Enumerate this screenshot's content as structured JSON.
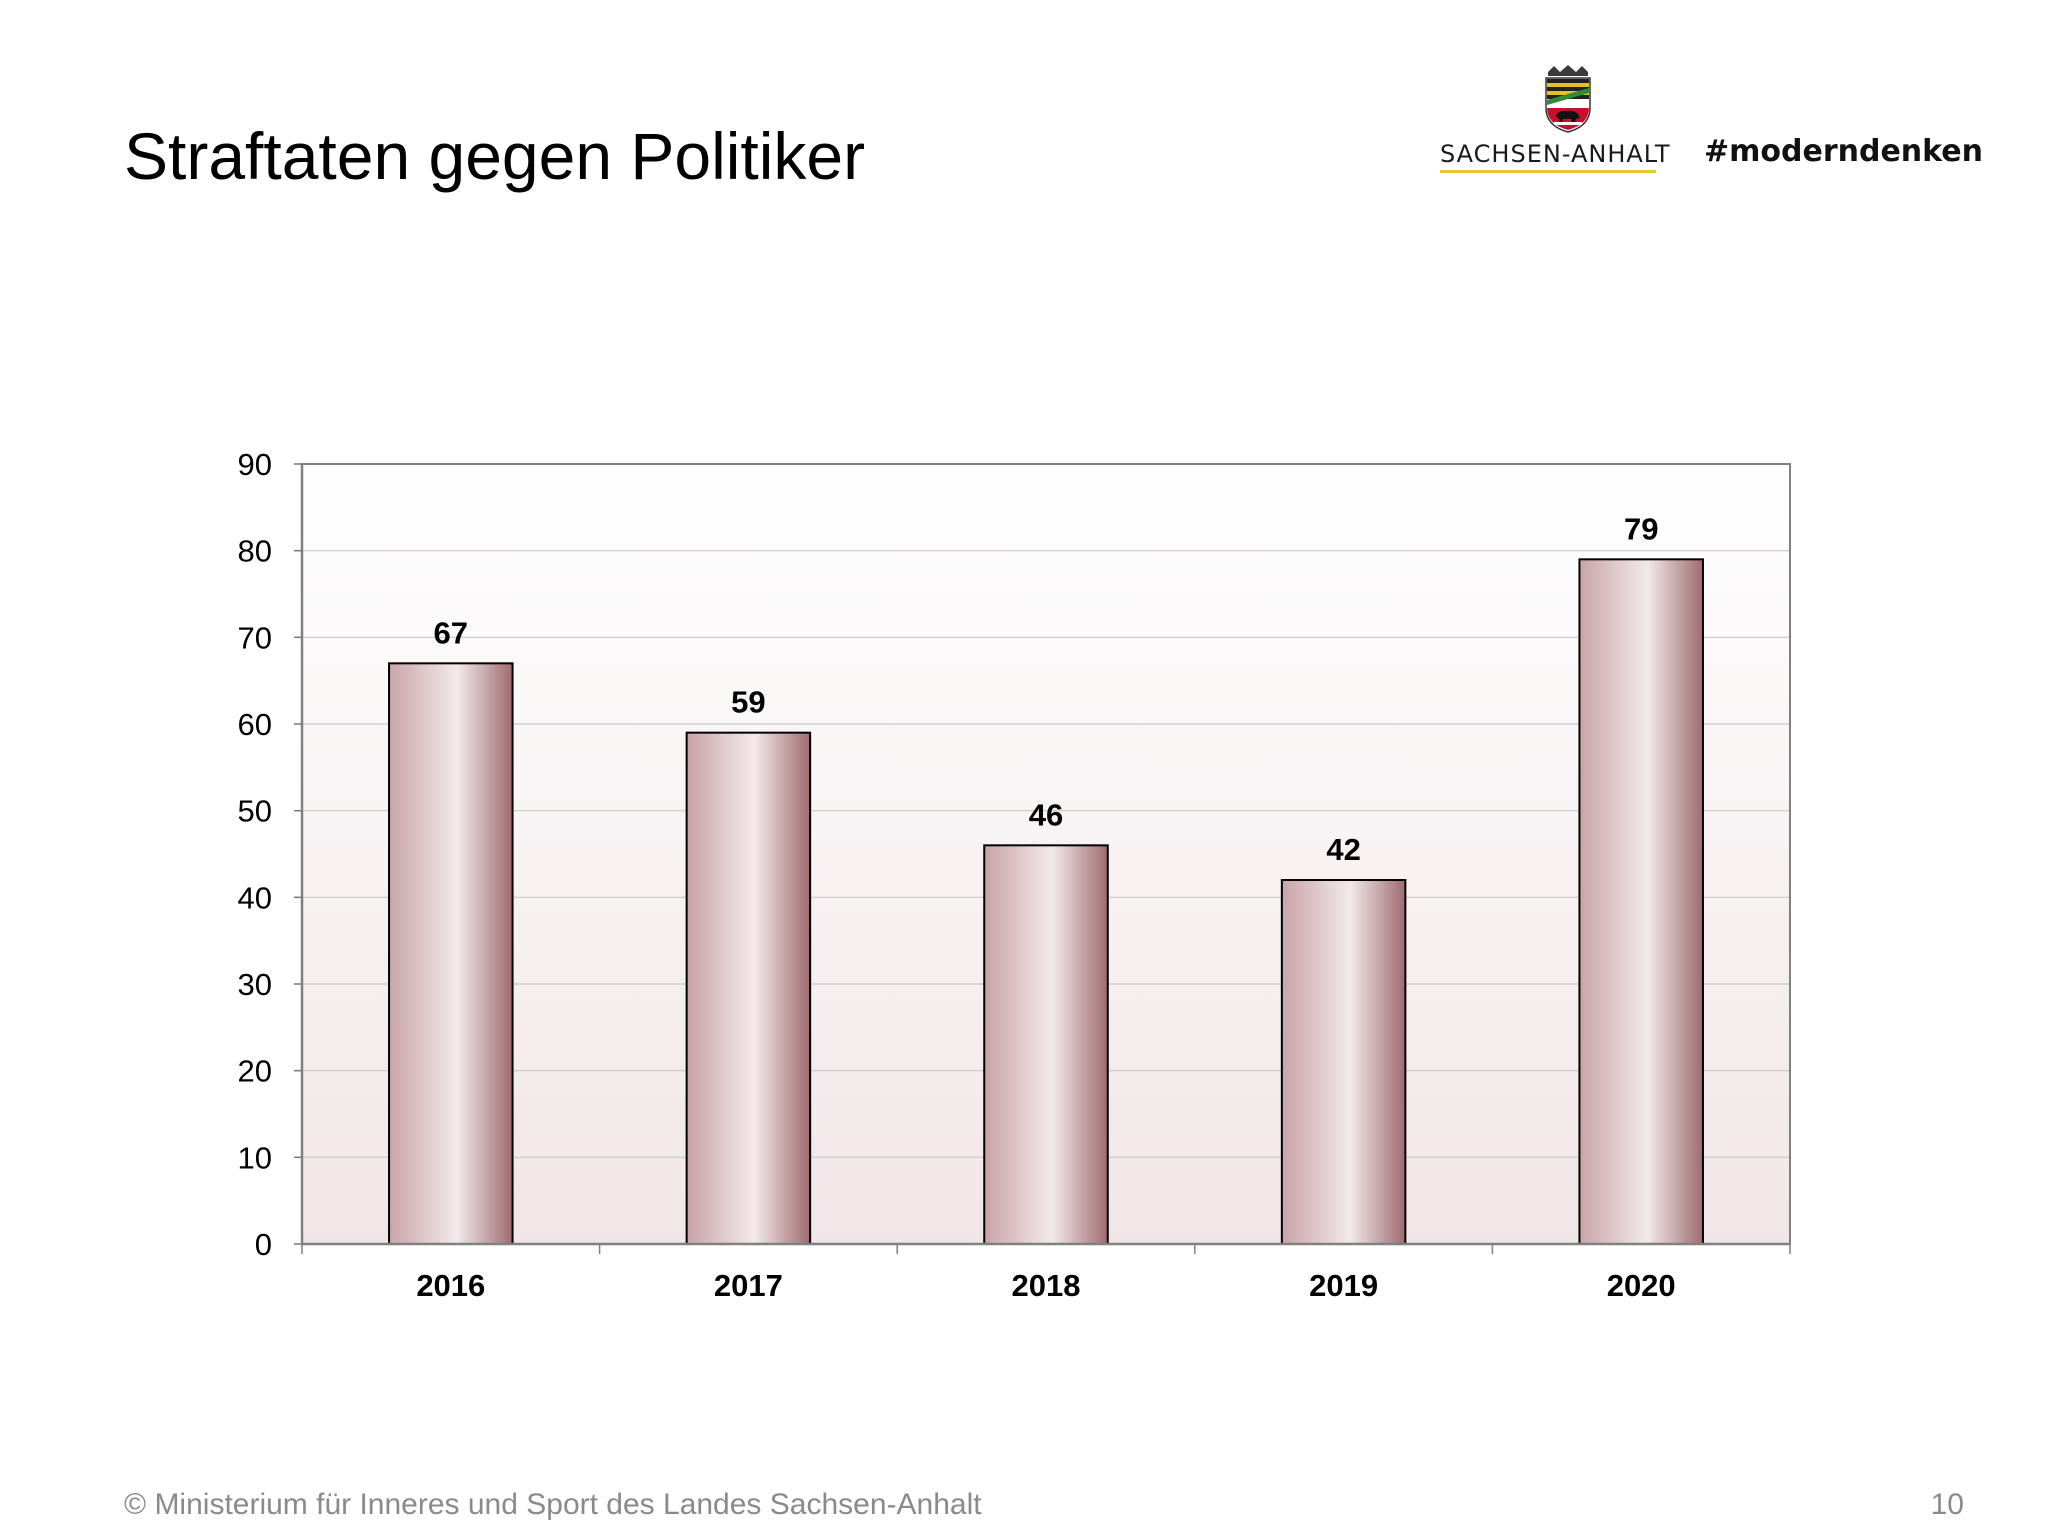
{
  "slide": {
    "title": "Straftaten gegen Politiker",
    "footer": "© Ministerium für Inneres und Sport des Landes Sachsen-Anhalt",
    "page_number": "10"
  },
  "branding": {
    "state_name": "SACHSEN-ANHALT",
    "hashtag": "#moderndenken",
    "logo": "coat-of-arms-icon",
    "accent_color": "#e8c832"
  },
  "chart_data": {
    "type": "bar",
    "title": "",
    "xlabel": "",
    "ylabel": "",
    "categories": [
      "2016",
      "2017",
      "2018",
      "2019",
      "2020"
    ],
    "values": [
      67,
      59,
      46,
      42,
      79
    ],
    "data_labels": [
      "67",
      "59",
      "46",
      "42",
      "79"
    ],
    "ylim": [
      0,
      90
    ],
    "yticks": [
      "0",
      "10",
      "20",
      "30",
      "40",
      "50",
      "60",
      "70",
      "80",
      "90"
    ],
    "grid": true,
    "legend": "none",
    "bar_color": "#c9a4a8",
    "bar_highlight": "#f3e9ea",
    "bar_shadow": "#9e6b70",
    "plot_background_top": "#ffffff",
    "plot_background_bottom": "#f1e6e7"
  }
}
